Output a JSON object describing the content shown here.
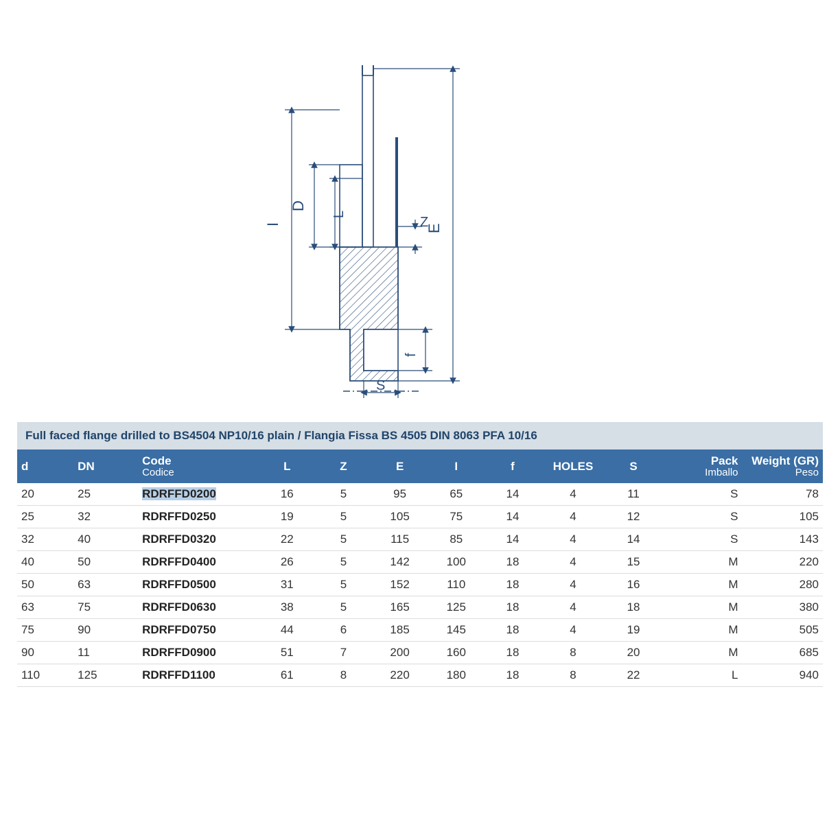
{
  "colors": {
    "title_bg": "#d6dee6",
    "title_text": "#20456a",
    "header_bg": "#3a6ea5",
    "header_text": "#ffffff",
    "row_border": "#dcdcdc",
    "highlight_bg": "#b7cfe6",
    "diagram_stroke": "#2a4d7a",
    "hatch_stroke": "#2a4d7a"
  },
  "diagram": {
    "labels": {
      "I": "I",
      "D": "D",
      "L": "L",
      "Z": "Z",
      "E": "E",
      "f": "f",
      "S": "S"
    }
  },
  "table": {
    "title": "Full faced flange drilled to BS4504 NP10/16 plain / Flangia Fissa BS 4505 DIN 8063 PFA 10/16",
    "columns": [
      {
        "key": "d",
        "label": "d",
        "align": "left",
        "width": "7%"
      },
      {
        "key": "DN",
        "label": "DN",
        "align": "left",
        "width": "8%"
      },
      {
        "key": "code",
        "label": "Code",
        "sub": "Codice",
        "align": "left",
        "width": "15%"
      },
      {
        "key": "L",
        "label": "L",
        "align": "center",
        "width": "7%"
      },
      {
        "key": "Z",
        "label": "Z",
        "align": "center",
        "width": "7%"
      },
      {
        "key": "E",
        "label": "E",
        "align": "center",
        "width": "7%"
      },
      {
        "key": "I",
        "label": "I",
        "align": "center",
        "width": "7%"
      },
      {
        "key": "f",
        "label": "f",
        "align": "center",
        "width": "7%"
      },
      {
        "key": "HOLES",
        "label": "HOLES",
        "align": "center",
        "width": "8%"
      },
      {
        "key": "S",
        "label": "S",
        "align": "center",
        "width": "7%"
      },
      {
        "key": "pack",
        "label": "Pack",
        "sub": "Imballo",
        "align": "right",
        "width": "10%"
      },
      {
        "key": "weight",
        "label": "Weight (GR)",
        "sub": "Peso",
        "align": "right",
        "width": "10%"
      }
    ],
    "rows": [
      {
        "d": "20",
        "DN": "25",
        "code": "RDRFFD0200",
        "L": "16",
        "Z": "5",
        "E": "95",
        "I": "65",
        "f": "14",
        "HOLES": "4",
        "S": "11",
        "pack": "S",
        "weight": "78",
        "highlight": true
      },
      {
        "d": "25",
        "DN": "32",
        "code": "RDRFFD0250",
        "L": "19",
        "Z": "5",
        "E": "105",
        "I": "75",
        "f": "14",
        "HOLES": "4",
        "S": "12",
        "pack": "S",
        "weight": "105"
      },
      {
        "d": "32",
        "DN": "40",
        "code": "RDRFFD0320",
        "L": "22",
        "Z": "5",
        "E": "115",
        "I": "85",
        "f": "14",
        "HOLES": "4",
        "S": "14",
        "pack": "S",
        "weight": "143"
      },
      {
        "d": "40",
        "DN": "50",
        "code": "RDRFFD0400",
        "L": "26",
        "Z": "5",
        "E": "142",
        "I": "100",
        "f": "18",
        "HOLES": "4",
        "S": "15",
        "pack": "M",
        "weight": "220"
      },
      {
        "d": "50",
        "DN": "63",
        "code": "RDRFFD0500",
        "L": "31",
        "Z": "5",
        "E": "152",
        "I": "110",
        "f": "18",
        "HOLES": "4",
        "S": "16",
        "pack": "M",
        "weight": "280"
      },
      {
        "d": "63",
        "DN": "75",
        "code": "RDRFFD0630",
        "L": "38",
        "Z": "5",
        "E": "165",
        "I": "125",
        "f": "18",
        "HOLES": "4",
        "S": "18",
        "pack": "M",
        "weight": "380"
      },
      {
        "d": "75",
        "DN": "90",
        "code": "RDRFFD0750",
        "L": "44",
        "Z": "6",
        "E": "185",
        "I": "145",
        "f": "18",
        "HOLES": "4",
        "S": "19",
        "pack": "M",
        "weight": "505"
      },
      {
        "d": "90",
        "DN": "11",
        "code": "RDRFFD0900",
        "L": "51",
        "Z": "7",
        "E": "200",
        "I": "160",
        "f": "18",
        "HOLES": "8",
        "S": "20",
        "pack": "M",
        "weight": "685"
      },
      {
        "d": "110",
        "DN": "125",
        "code": "RDRFFD1100",
        "L": "61",
        "Z": "8",
        "E": "220",
        "I": "180",
        "f": "18",
        "HOLES": "8",
        "S": "22",
        "pack": "L",
        "weight": "940"
      }
    ]
  }
}
